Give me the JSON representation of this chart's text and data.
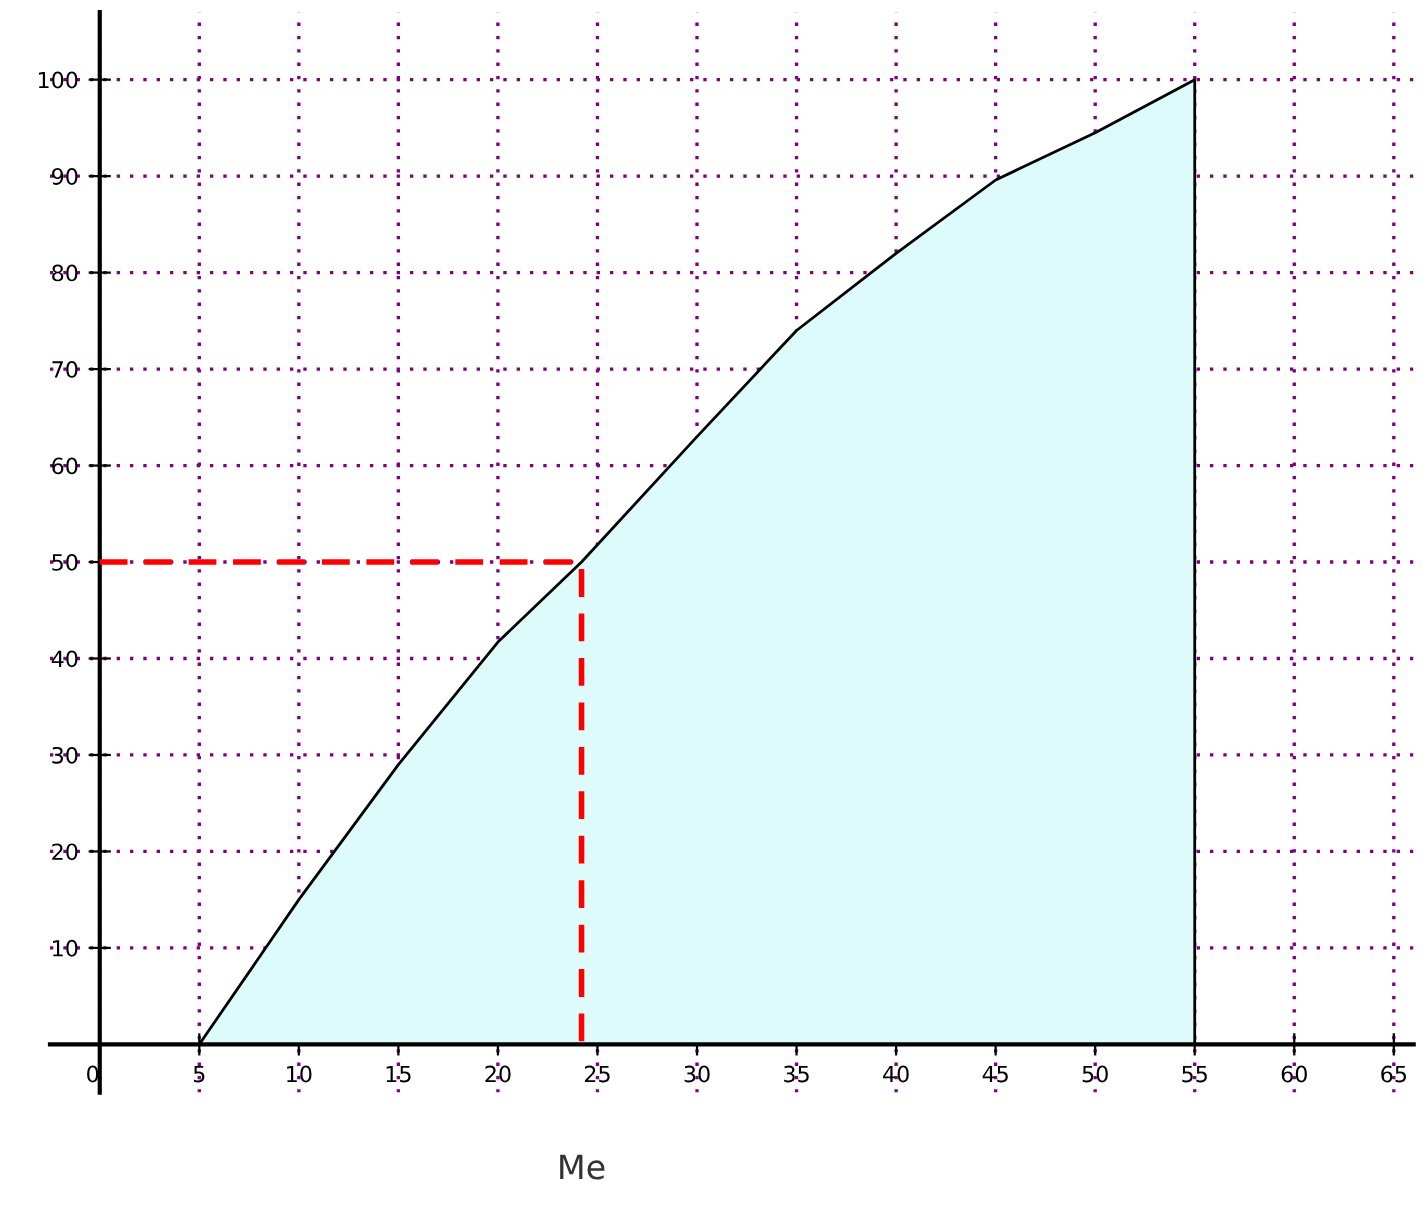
{
  "chart_data": {
    "type": "area",
    "xlim": [
      -2.5,
      66
    ],
    "ylim": [
      -5,
      107
    ],
    "xticks": [
      0,
      5,
      10,
      15,
      20,
      25,
      30,
      35,
      40,
      45,
      50,
      55,
      60,
      65
    ],
    "yticks": [
      10,
      20,
      30,
      40,
      50,
      60,
      70,
      80,
      90,
      100
    ],
    "grid": true,
    "annotations": [
      "Me"
    ],
    "series": [
      {
        "color": "#ddfbfb",
        "x": [
          5,
          10,
          15,
          20,
          24.2,
          30,
          35,
          40,
          45,
          50,
          55
        ],
        "values": [
          0,
          15,
          29,
          41.7,
          50,
          63,
          74,
          82,
          89.6,
          94.5,
          100
        ]
      },
      {
        "type": "line",
        "color": "#ff0000",
        "line_style": "dashed",
        "x": [
          0,
          24.2,
          24.2
        ],
        "values": [
          50,
          50,
          0
        ]
      }
    ]
  }
}
